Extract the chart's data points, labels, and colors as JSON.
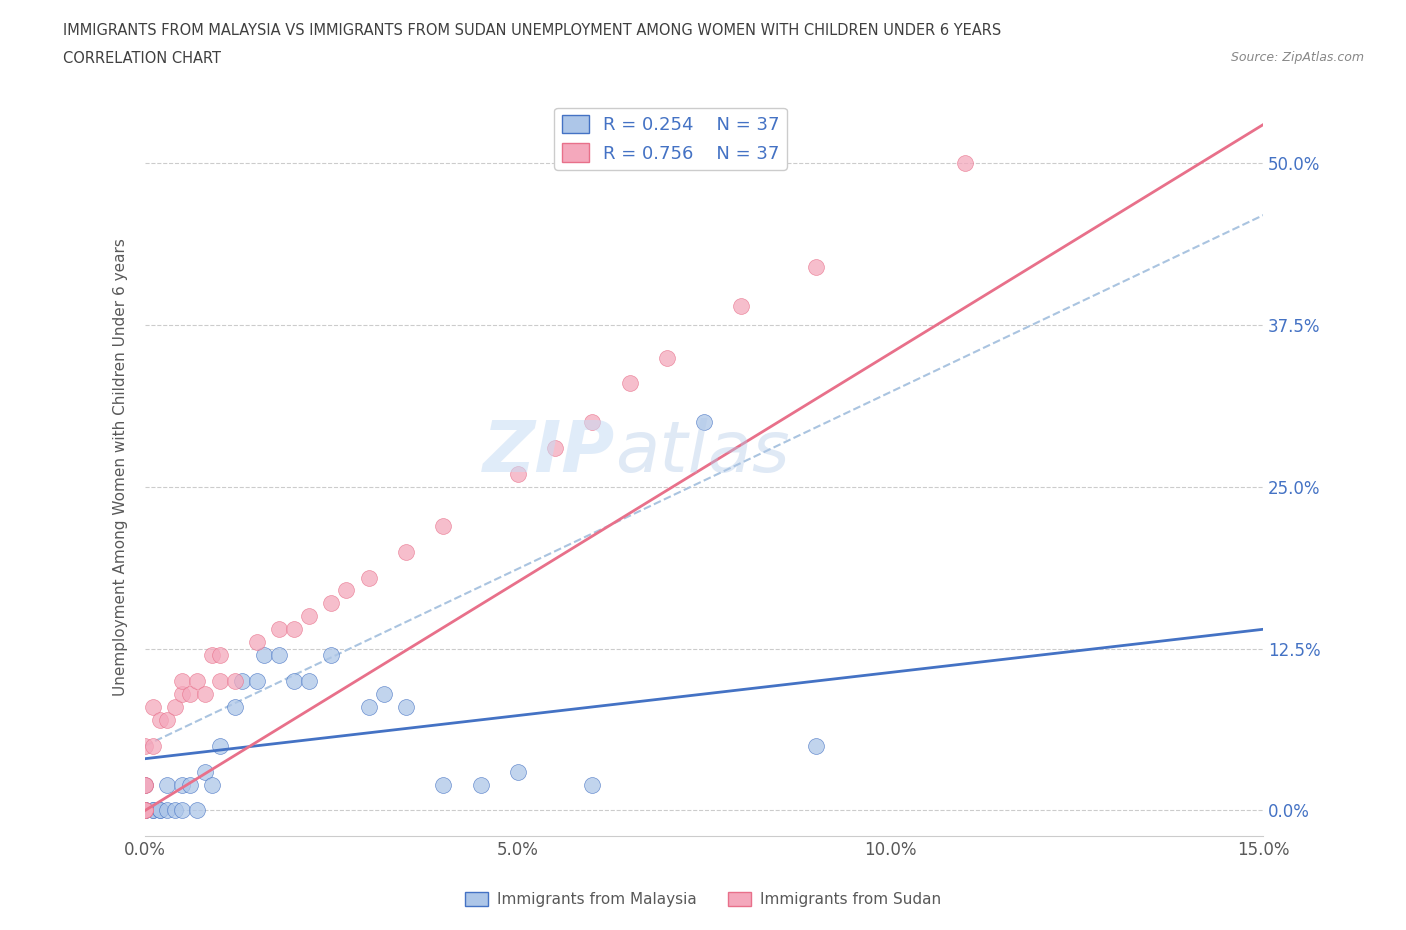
{
  "title_line1": "IMMIGRANTS FROM MALAYSIA VS IMMIGRANTS FROM SUDAN UNEMPLOYMENT AMONG WOMEN WITH CHILDREN UNDER 6 YEARS",
  "title_line2": "CORRELATION CHART",
  "source_text": "Source: ZipAtlas.com",
  "ylabel": "Unemployment Among Women with Children Under 6 years",
  "xlim": [
    0.0,
    0.15
  ],
  "ylim": [
    -0.02,
    0.55
  ],
  "yticks": [
    0.0,
    0.125,
    0.25,
    0.375,
    0.5
  ],
  "ytick_labels": [
    "0.0%",
    "12.5%",
    "25.0%",
    "37.5%",
    "50.0%"
  ],
  "xticks": [
    0.0,
    0.05,
    0.1,
    0.15
  ],
  "xtick_labels": [
    "0.0%",
    "5.0%",
    "10.0%",
    "15.0%"
  ],
  "color_malaysia": "#adc6e8",
  "color_sudan": "#f4a8bc",
  "color_line_malaysia": "#4472c4",
  "color_line_sudan": "#e8708a",
  "color_dash": "#aac4e0",
  "watermark_zip": "ZIP",
  "watermark_atlas": "atlas",
  "background_color": "#ffffff",
  "grid_color": "#cccccc",
  "title_color": "#404040",
  "axis_label_color": "#595959",
  "legend_text_color": "#4472c4",
  "malaysia_x": [
    0.0,
    0.0,
    0.0,
    0.0,
    0.0,
    0.0,
    0.001,
    0.001,
    0.002,
    0.002,
    0.003,
    0.003,
    0.004,
    0.005,
    0.005,
    0.006,
    0.007,
    0.008,
    0.009,
    0.01,
    0.012,
    0.013,
    0.015,
    0.016,
    0.018,
    0.02,
    0.022,
    0.025,
    0.03,
    0.032,
    0.035,
    0.04,
    0.045,
    0.05,
    0.06,
    0.075,
    0.09
  ],
  "malaysia_y": [
    0.0,
    0.0,
    0.0,
    0.0,
    0.0,
    0.02,
    0.0,
    0.0,
    0.0,
    0.0,
    0.0,
    0.02,
    0.0,
    0.0,
    0.02,
    0.02,
    0.0,
    0.03,
    0.02,
    0.05,
    0.08,
    0.1,
    0.1,
    0.12,
    0.12,
    0.1,
    0.1,
    0.12,
    0.08,
    0.09,
    0.08,
    0.02,
    0.02,
    0.03,
    0.02,
    0.3,
    0.05
  ],
  "sudan_x": [
    0.0,
    0.0,
    0.0,
    0.0,
    0.0,
    0.0,
    0.001,
    0.001,
    0.002,
    0.003,
    0.004,
    0.005,
    0.005,
    0.006,
    0.007,
    0.008,
    0.009,
    0.01,
    0.01,
    0.012,
    0.015,
    0.018,
    0.02,
    0.022,
    0.025,
    0.027,
    0.03,
    0.035,
    0.04,
    0.05,
    0.055,
    0.06,
    0.065,
    0.07,
    0.08,
    0.09,
    0.11
  ],
  "sudan_y": [
    0.0,
    0.0,
    0.0,
    0.02,
    0.02,
    0.05,
    0.05,
    0.08,
    0.07,
    0.07,
    0.08,
    0.09,
    0.1,
    0.09,
    0.1,
    0.09,
    0.12,
    0.1,
    0.12,
    0.1,
    0.13,
    0.14,
    0.14,
    0.15,
    0.16,
    0.17,
    0.18,
    0.2,
    0.22,
    0.26,
    0.28,
    0.3,
    0.33,
    0.35,
    0.39,
    0.42,
    0.5
  ],
  "mal_line_x0": 0.0,
  "mal_line_x1": 0.15,
  "mal_line_y0": 0.04,
  "mal_line_y1": 0.14,
  "sud_line_x0": 0.0,
  "sud_line_x1": 0.15,
  "sud_line_y0": 0.0,
  "sud_line_y1": 0.53,
  "dash_line_x0": 0.0,
  "dash_line_x1": 0.15,
  "dash_line_y0": 0.05,
  "dash_line_y1": 0.46
}
